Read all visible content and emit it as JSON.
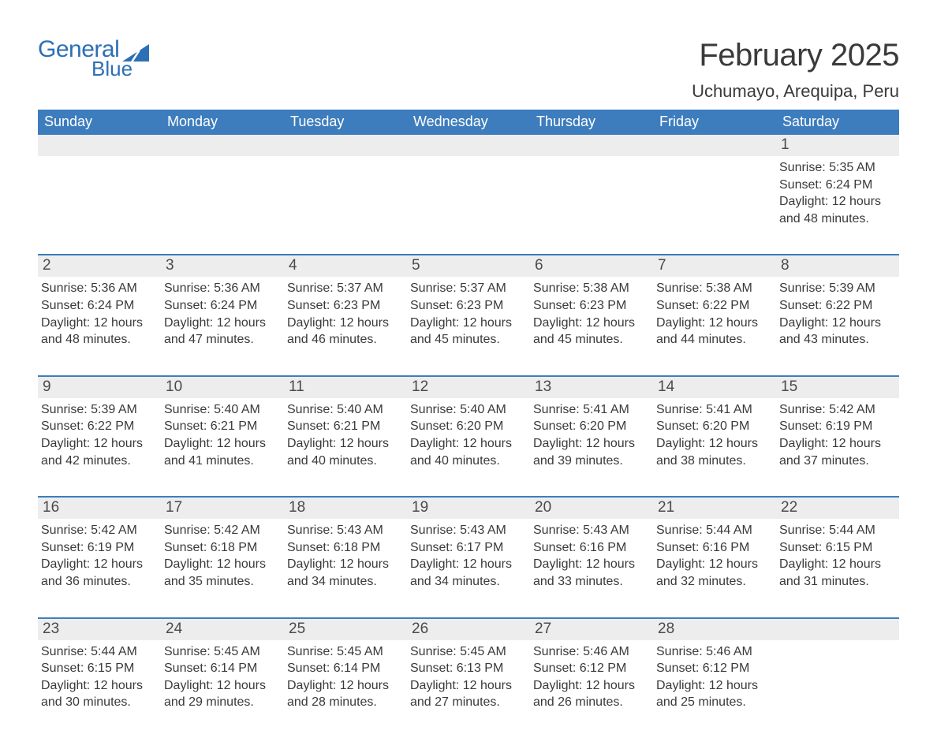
{
  "branding": {
    "logo_word1": "General",
    "logo_word2": "Blue",
    "brand_color": "#2d6fb5"
  },
  "header": {
    "month_title": "February 2025",
    "location": "Uchumayo, Arequipa, Peru"
  },
  "colors": {
    "header_bar_bg": "#3d7dbd",
    "header_bar_text": "#ffffff",
    "page_bg": "#ffffff",
    "daynum_bg": "#ededed",
    "body_text": "#3a3a3a",
    "week_divider": "#3d7dbd"
  },
  "typography": {
    "month_title_fontsize": 40,
    "location_fontsize": 22,
    "weekday_fontsize": 18,
    "daynum_fontsize": 19,
    "detail_fontsize": 16
  },
  "weekdays": [
    "Sunday",
    "Monday",
    "Tuesday",
    "Wednesday",
    "Thursday",
    "Friday",
    "Saturday"
  ],
  "label_sunrise": "Sunrise:",
  "label_sunset": "Sunset:",
  "label_daylight_prefix": "Daylight:",
  "weeks": [
    [
      null,
      null,
      null,
      null,
      null,
      null,
      {
        "day": "1",
        "sunrise": "5:35 AM",
        "sunset": "6:24 PM",
        "daylight": "12 hours and 48 minutes."
      }
    ],
    [
      {
        "day": "2",
        "sunrise": "5:36 AM",
        "sunset": "6:24 PM",
        "daylight": "12 hours and 48 minutes."
      },
      {
        "day": "3",
        "sunrise": "5:36 AM",
        "sunset": "6:24 PM",
        "daylight": "12 hours and 47 minutes."
      },
      {
        "day": "4",
        "sunrise": "5:37 AM",
        "sunset": "6:23 PM",
        "daylight": "12 hours and 46 minutes."
      },
      {
        "day": "5",
        "sunrise": "5:37 AM",
        "sunset": "6:23 PM",
        "daylight": "12 hours and 45 minutes."
      },
      {
        "day": "6",
        "sunrise": "5:38 AM",
        "sunset": "6:23 PM",
        "daylight": "12 hours and 45 minutes."
      },
      {
        "day": "7",
        "sunrise": "5:38 AM",
        "sunset": "6:22 PM",
        "daylight": "12 hours and 44 minutes."
      },
      {
        "day": "8",
        "sunrise": "5:39 AM",
        "sunset": "6:22 PM",
        "daylight": "12 hours and 43 minutes."
      }
    ],
    [
      {
        "day": "9",
        "sunrise": "5:39 AM",
        "sunset": "6:22 PM",
        "daylight": "12 hours and 42 minutes."
      },
      {
        "day": "10",
        "sunrise": "5:40 AM",
        "sunset": "6:21 PM",
        "daylight": "12 hours and 41 minutes."
      },
      {
        "day": "11",
        "sunrise": "5:40 AM",
        "sunset": "6:21 PM",
        "daylight": "12 hours and 40 minutes."
      },
      {
        "day": "12",
        "sunrise": "5:40 AM",
        "sunset": "6:20 PM",
        "daylight": "12 hours and 40 minutes."
      },
      {
        "day": "13",
        "sunrise": "5:41 AM",
        "sunset": "6:20 PM",
        "daylight": "12 hours and 39 minutes."
      },
      {
        "day": "14",
        "sunrise": "5:41 AM",
        "sunset": "6:20 PM",
        "daylight": "12 hours and 38 minutes."
      },
      {
        "day": "15",
        "sunrise": "5:42 AM",
        "sunset": "6:19 PM",
        "daylight": "12 hours and 37 minutes."
      }
    ],
    [
      {
        "day": "16",
        "sunrise": "5:42 AM",
        "sunset": "6:19 PM",
        "daylight": "12 hours and 36 minutes."
      },
      {
        "day": "17",
        "sunrise": "5:42 AM",
        "sunset": "6:18 PM",
        "daylight": "12 hours and 35 minutes."
      },
      {
        "day": "18",
        "sunrise": "5:43 AM",
        "sunset": "6:18 PM",
        "daylight": "12 hours and 34 minutes."
      },
      {
        "day": "19",
        "sunrise": "5:43 AM",
        "sunset": "6:17 PM",
        "daylight": "12 hours and 34 minutes."
      },
      {
        "day": "20",
        "sunrise": "5:43 AM",
        "sunset": "6:16 PM",
        "daylight": "12 hours and 33 minutes."
      },
      {
        "day": "21",
        "sunrise": "5:44 AM",
        "sunset": "6:16 PM",
        "daylight": "12 hours and 32 minutes."
      },
      {
        "day": "22",
        "sunrise": "5:44 AM",
        "sunset": "6:15 PM",
        "daylight": "12 hours and 31 minutes."
      }
    ],
    [
      {
        "day": "23",
        "sunrise": "5:44 AM",
        "sunset": "6:15 PM",
        "daylight": "12 hours and 30 minutes."
      },
      {
        "day": "24",
        "sunrise": "5:45 AM",
        "sunset": "6:14 PM",
        "daylight": "12 hours and 29 minutes."
      },
      {
        "day": "25",
        "sunrise": "5:45 AM",
        "sunset": "6:14 PM",
        "daylight": "12 hours and 28 minutes."
      },
      {
        "day": "26",
        "sunrise": "5:45 AM",
        "sunset": "6:13 PM",
        "daylight": "12 hours and 27 minutes."
      },
      {
        "day": "27",
        "sunrise": "5:46 AM",
        "sunset": "6:12 PM",
        "daylight": "12 hours and 26 minutes."
      },
      {
        "day": "28",
        "sunrise": "5:46 AM",
        "sunset": "6:12 PM",
        "daylight": "12 hours and 25 minutes."
      },
      null
    ]
  ]
}
